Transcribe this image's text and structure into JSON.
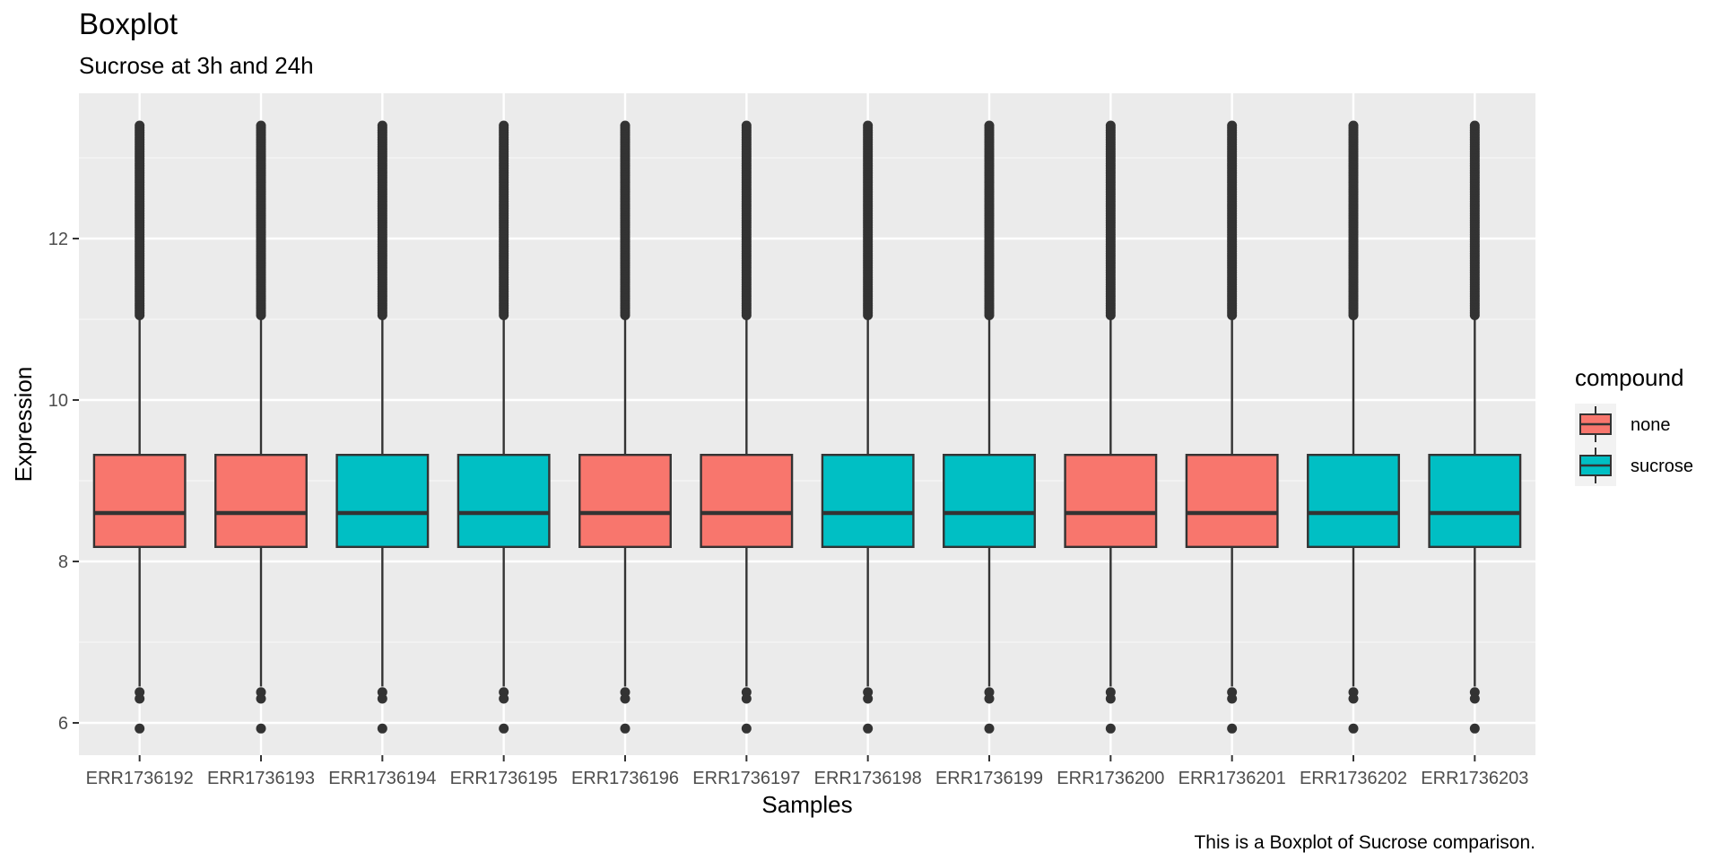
{
  "chart_data": {
    "type": "boxplot",
    "title": "Boxplot",
    "subtitle": "Sucrose at 3h and 24h",
    "xlabel": "Samples",
    "ylabel": "Expression",
    "caption": "This is a Boxplot of Sucrose comparison.",
    "ylim": [
      5.6,
      13.8
    ],
    "yticks": [
      6,
      8,
      10,
      12
    ],
    "grid": true,
    "legend": {
      "title": "compound",
      "position": "right",
      "entries": [
        {
          "label": "none",
          "color": "#F8766D"
        },
        {
          "label": "sucrose",
          "color": "#00BFC4"
        }
      ]
    },
    "categories": [
      "ERR1736192",
      "ERR1736193",
      "ERR1736194",
      "ERR1736195",
      "ERR1736196",
      "ERR1736197",
      "ERR1736198",
      "ERR1736199",
      "ERR1736200",
      "ERR1736201",
      "ERR1736202",
      "ERR1736203"
    ],
    "groups": [
      "none",
      "none",
      "sucrose",
      "sucrose",
      "none",
      "none",
      "sucrose",
      "sucrose",
      "none",
      "none",
      "sucrose",
      "sucrose"
    ],
    "stats": {
      "whisker_low": 6.45,
      "q1": 8.18,
      "median": 8.6,
      "q3": 9.32,
      "whisker_high": 11.05
    },
    "outliers": {
      "low": [
        6.38,
        6.3,
        5.93
      ],
      "high_range": [
        11.05,
        13.4
      ]
    }
  }
}
